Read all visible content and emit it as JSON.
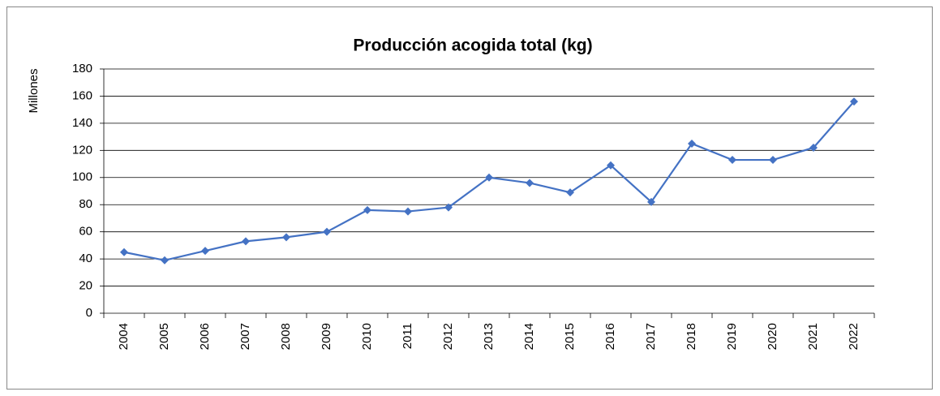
{
  "chart_data": {
    "type": "line",
    "title": "Producción acogida total (kg)",
    "y_label": "Millones",
    "categories": [
      "2004",
      "2005",
      "2006",
      "2007",
      "2008",
      "2009",
      "2010",
      "2011",
      "2012",
      "2013",
      "2014",
      "2015",
      "2016",
      "2017",
      "2018",
      "2019",
      "2020",
      "2021",
      "2022"
    ],
    "values": [
      45,
      39,
      46,
      53,
      56,
      60,
      76,
      75,
      78,
      100,
      96,
      89,
      109,
      82,
      125,
      113,
      113,
      122,
      156
    ],
    "color": "#4472c4",
    "ylim": [
      0,
      180
    ],
    "yticks": [
      0,
      20,
      40,
      60,
      80,
      100,
      120,
      140,
      160,
      180
    ],
    "grid": true
  }
}
